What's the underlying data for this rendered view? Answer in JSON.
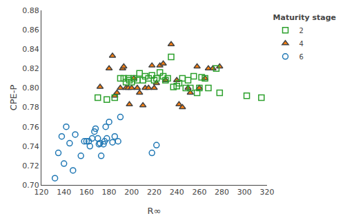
{
  "chart_data": {
    "type": "scatter",
    "xlabel": "R∞",
    "ylabel": "CPE-P",
    "xlim": [
      120,
      320
    ],
    "ylim": [
      0.7,
      0.88
    ],
    "xticks": [
      120,
      140,
      160,
      180,
      200,
      220,
      240,
      260,
      280,
      300,
      320
    ],
    "yticks": [
      {
        "value": 0.7,
        "label": "0.70"
      },
      0.72,
      0.74,
      0.76,
      0.78,
      {
        "value": 0.8,
        "label": "0.80"
      },
      0.82,
      0.84,
      0.86,
      0.88
    ],
    "legend_title": "Maturity stage",
    "legend": "upper right",
    "grid": false,
    "series": [
      {
        "name": "6",
        "marker": "circle-open",
        "x": [
          132,
          135,
          138,
          140,
          142,
          145,
          148,
          150,
          155,
          158,
          160,
          162,
          163,
          165,
          167,
          168,
          170,
          171,
          172,
          173,
          175,
          176,
          177,
          178,
          180,
          183,
          185,
          188,
          190,
          218,
          222
        ],
        "values": [
          0.707,
          0.733,
          0.75,
          0.722,
          0.76,
          0.743,
          0.715,
          0.752,
          0.73,
          0.745,
          0.745,
          0.745,
          0.74,
          0.748,
          0.755,
          0.758,
          0.748,
          0.742,
          0.743,
          0.73,
          0.742,
          0.745,
          0.76,
          0.748,
          0.765,
          0.744,
          0.75,
          0.745,
          0.77,
          0.733,
          0.741
        ]
      },
      {
        "name": "4",
        "marker": "triangle-up",
        "x": [
          172,
          180,
          183,
          185,
          187,
          190,
          192,
          193,
          195,
          197,
          198,
          200,
          202,
          205,
          207,
          210,
          212,
          215,
          218,
          220,
          222,
          225,
          228,
          230,
          235,
          240,
          242,
          245,
          250,
          252,
          258,
          260,
          265,
          268,
          272,
          278
        ],
        "values": [
          0.801,
          0.82,
          0.833,
          0.792,
          0.795,
          0.8,
          0.82,
          0.822,
          0.8,
          0.8,
          0.783,
          0.8,
          0.81,
          0.8,
          0.795,
          0.782,
          0.8,
          0.8,
          0.823,
          0.8,
          0.805,
          0.823,
          0.825,
          0.808,
          0.845,
          0.808,
          0.783,
          0.78,
          0.8,
          0.795,
          0.822,
          0.8,
          0.81,
          0.82,
          0.82,
          0.822
        ]
      },
      {
        "name": "2",
        "marker": "square-open",
        "x": [
          170,
          178,
          185,
          190,
          193,
          195,
          197,
          198,
          200,
          202,
          205,
          207,
          210,
          212,
          215,
          218,
          220,
          222,
          225,
          228,
          230,
          232,
          235,
          237,
          240,
          242,
          245,
          248,
          250,
          252,
          255,
          258,
          260,
          262,
          265,
          268,
          275,
          278,
          302,
          315
        ],
        "values": [
          0.79,
          0.788,
          0.79,
          0.81,
          0.81,
          0.806,
          0.81,
          0.808,
          0.806,
          0.81,
          0.808,
          0.815,
          0.808,
          0.812,
          0.81,
          0.813,
          0.808,
          0.81,
          0.816,
          0.812,
          0.808,
          0.81,
          0.832,
          0.801,
          0.802,
          0.805,
          0.81,
          0.8,
          0.808,
          0.8,
          0.812,
          0.795,
          0.8,
          0.811,
          0.81,
          0.8,
          0.82,
          0.795,
          0.792,
          0.79
        ]
      }
    ]
  }
}
